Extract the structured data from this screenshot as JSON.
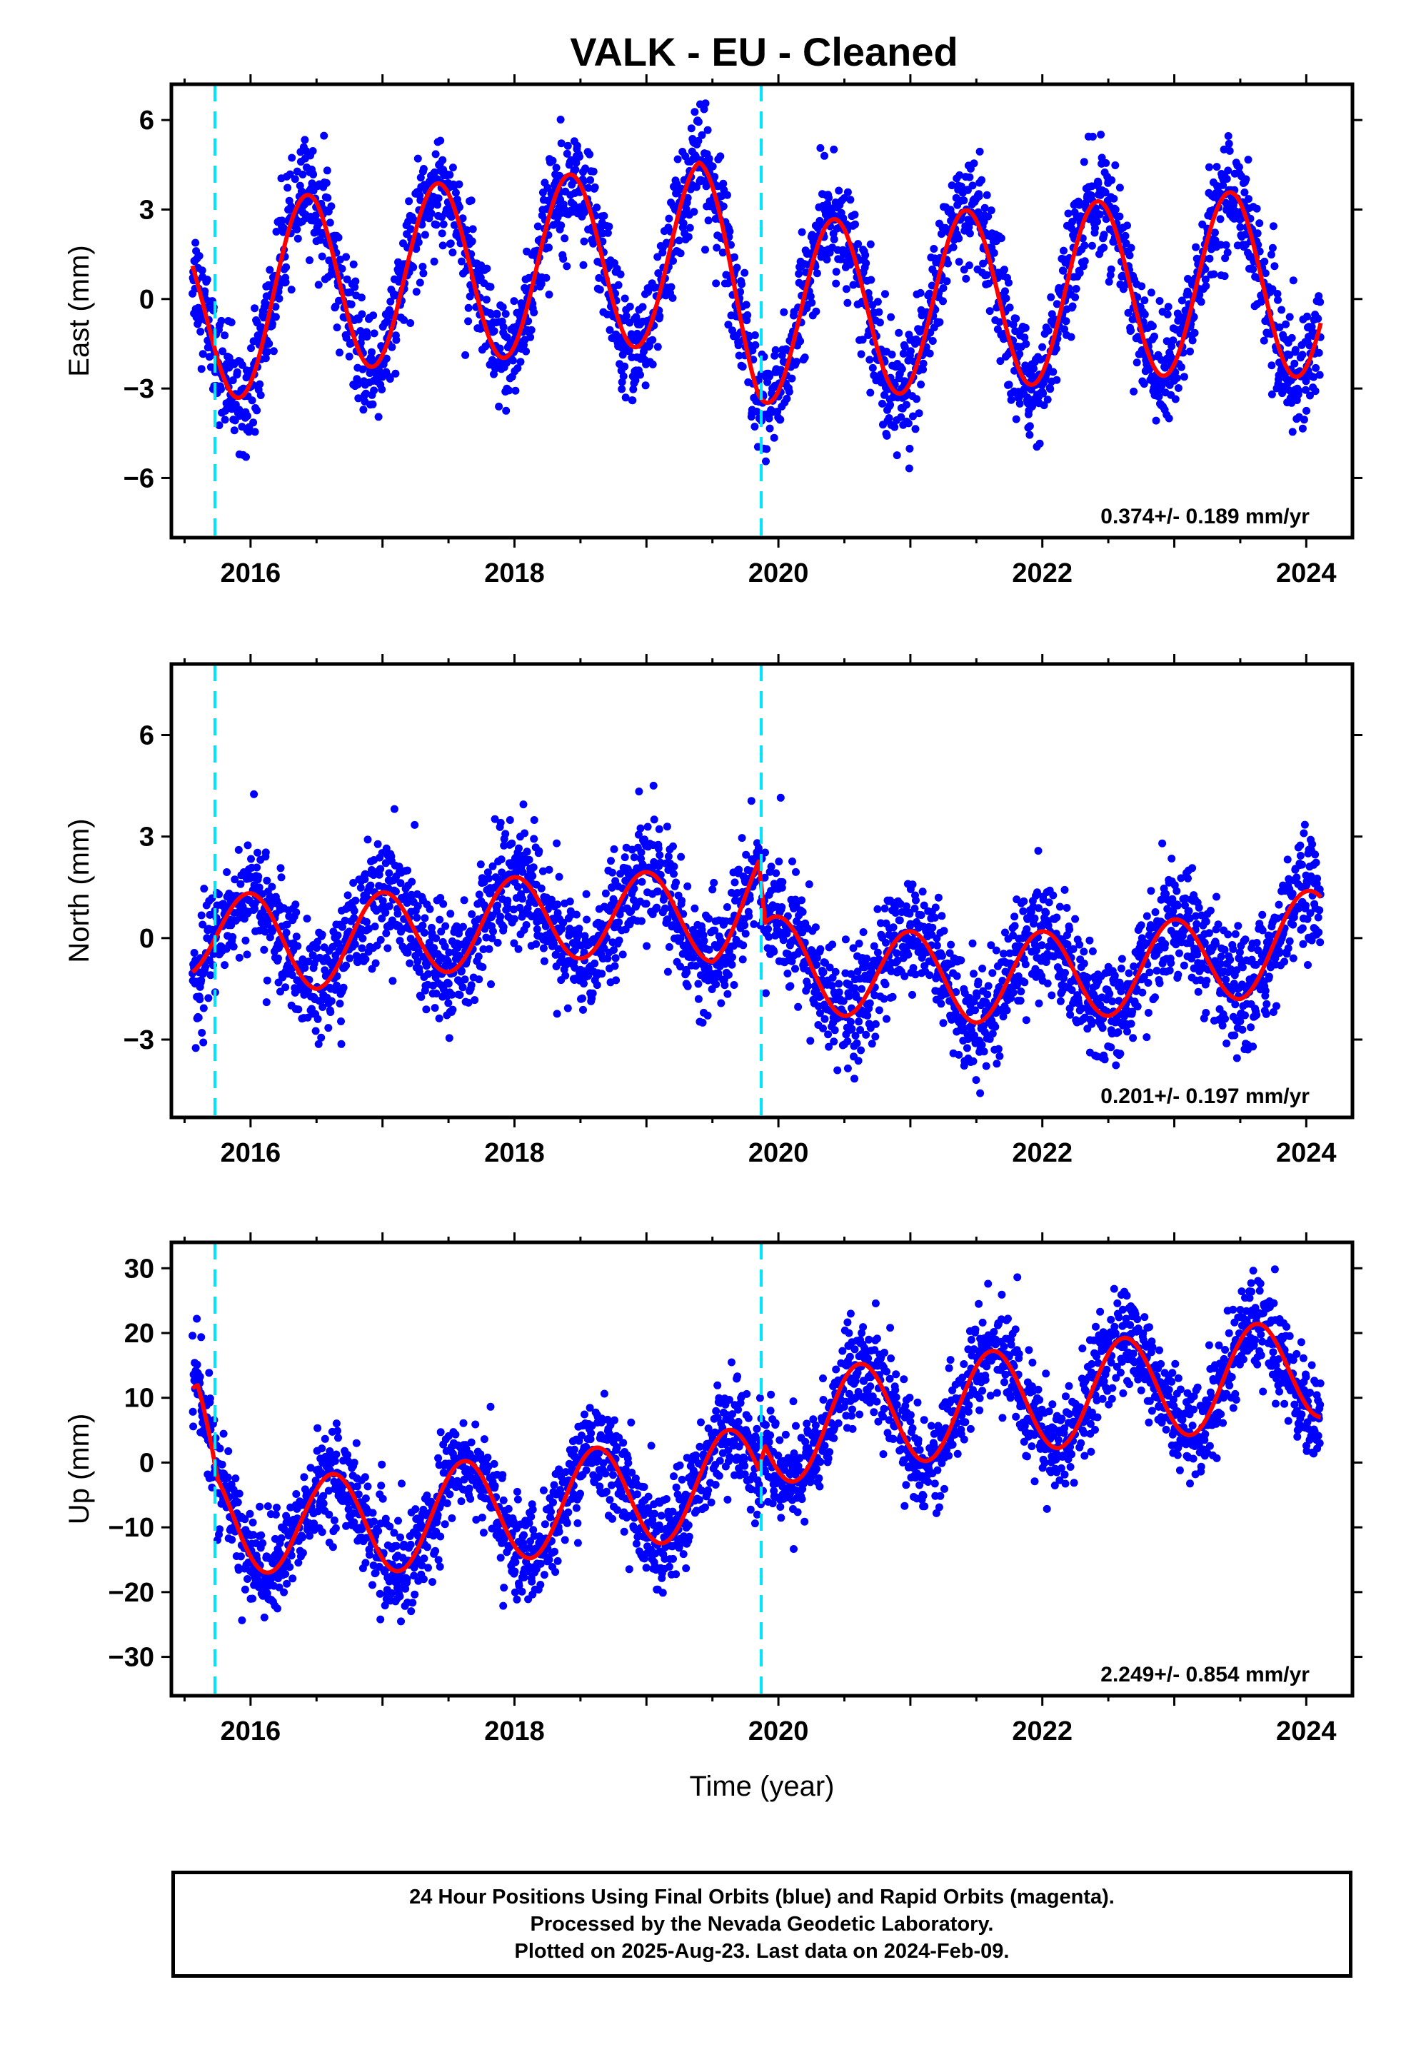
{
  "title": "VALK  - EU - Cleaned",
  "footer": {
    "line1": "24 Hour Positions Using Final Orbits (blue) and Rapid Orbits (magenta).",
    "line2": "Processed by the Nevada Geodetic Laboratory.",
    "line3": "Plotted on 2025-Aug-23. Last data on 2024-Feb-09."
  },
  "colors": {
    "points": "#0000ff",
    "model": "#ff0000",
    "events": "#00e5ff",
    "frame": "#000000"
  },
  "chart_data": [
    {
      "type": "scatter",
      "component": "east",
      "ylabel": "East (mm)",
      "xlabel": "",
      "xlim": [
        2015.4,
        2024.35
      ],
      "ylim": [
        -8.0,
        7.2
      ],
      "xticks": [
        2016,
        2018,
        2020,
        2022,
        2024
      ],
      "yticks": [
        -6,
        -3,
        0,
        3,
        6
      ],
      "ytick_labels": [
        "−6",
        "−3",
        "0",
        "3",
        "6"
      ],
      "rate_label": "0.374+/- 0.189 mm/yr",
      "event_lines_year": [
        2015.73,
        2019.87
      ],
      "data_start_year": 2015.56,
      "data_end_year": 2024.11,
      "model": {
        "amplitude": 3.0,
        "peak_phase_year": 0.42,
        "offset_by_year": [
          [
            2015.6,
            -0.8
          ],
          [
            2016.5,
            0.6
          ],
          [
            2017.5,
            0.9
          ],
          [
            2018.5,
            1.2
          ],
          [
            2019.4,
            1.6
          ],
          [
            2019.85,
            -0.5
          ],
          [
            2020.5,
            -0.3
          ],
          [
            2021.5,
            0.0
          ],
          [
            2022.5,
            0.3
          ],
          [
            2023.5,
            0.6
          ],
          [
            2024.1,
            0.3
          ]
        ],
        "spread": 1.2
      }
    },
    {
      "type": "scatter",
      "component": "north",
      "ylabel": "North (mm)",
      "xlabel": "",
      "xlim": [
        2015.4,
        2024.35
      ],
      "ylim": [
        -5.3,
        8.1
      ],
      "xticks": [
        2016,
        2018,
        2020,
        2022,
        2024
      ],
      "yticks": [
        -3,
        0,
        3,
        6
      ],
      "ytick_labels": [
        "−3",
        "0",
        "3",
        "6"
      ],
      "rate_label": "0.201+/- 0.197 mm/yr",
      "event_lines_year": [
        2015.73,
        2019.87
      ],
      "data_start_year": 2015.56,
      "data_end_year": 2024.11,
      "model": {
        "amplitude": 1.3,
        "peak_phase_year": 0.0,
        "offset_by_year": [
          [
            2015.6,
            0.2
          ],
          [
            2016.5,
            -0.2
          ],
          [
            2017.5,
            0.3
          ],
          [
            2018.5,
            0.7
          ],
          [
            2019.5,
            0.6
          ],
          [
            2019.85,
            1.5
          ],
          [
            2019.9,
            -0.6
          ],
          [
            2020.5,
            -1.0
          ],
          [
            2021.5,
            -1.2
          ],
          [
            2022.5,
            -1.0
          ],
          [
            2023.5,
            -0.5
          ],
          [
            2024.1,
            0.2
          ]
        ],
        "spread": 1.1
      }
    },
    {
      "type": "scatter",
      "component": "up",
      "ylabel": "Up (mm)",
      "xlabel": "Time (year)",
      "xlim": [
        2015.4,
        2024.35
      ],
      "ylim": [
        -36,
        34
      ],
      "xticks": [
        2016,
        2018,
        2020,
        2022,
        2024
      ],
      "yticks": [
        -30,
        -20,
        -10,
        0,
        10,
        20,
        30
      ],
      "ytick_labels": [
        "−30",
        "−20",
        "−10",
        "0",
        "10",
        "20",
        "30"
      ],
      "rate_label": "2.249+/- 0.854 mm/yr",
      "event_lines_year": [
        2015.73,
        2019.87
      ],
      "data_start_year": 2015.56,
      "data_end_year": 2024.11,
      "model": {
        "amplitude": 8.0,
        "peak_phase_year": 0.62,
        "offset_by_year": [
          [
            2015.6,
            4.0
          ],
          [
            2015.75,
            -8.0
          ],
          [
            2016.5,
            -10.0
          ],
          [
            2017.5,
            -8.0
          ],
          [
            2018.5,
            -6.0
          ],
          [
            2019.5,
            -3.5
          ],
          [
            2019.85,
            -2.0
          ],
          [
            2019.9,
            4.0
          ],
          [
            2020.5,
            7.0
          ],
          [
            2021.5,
            9.0
          ],
          [
            2022.5,
            11.0
          ],
          [
            2023.5,
            13.0
          ],
          [
            2024.1,
            15.0
          ]
        ],
        "spread": 5.0
      }
    }
  ]
}
